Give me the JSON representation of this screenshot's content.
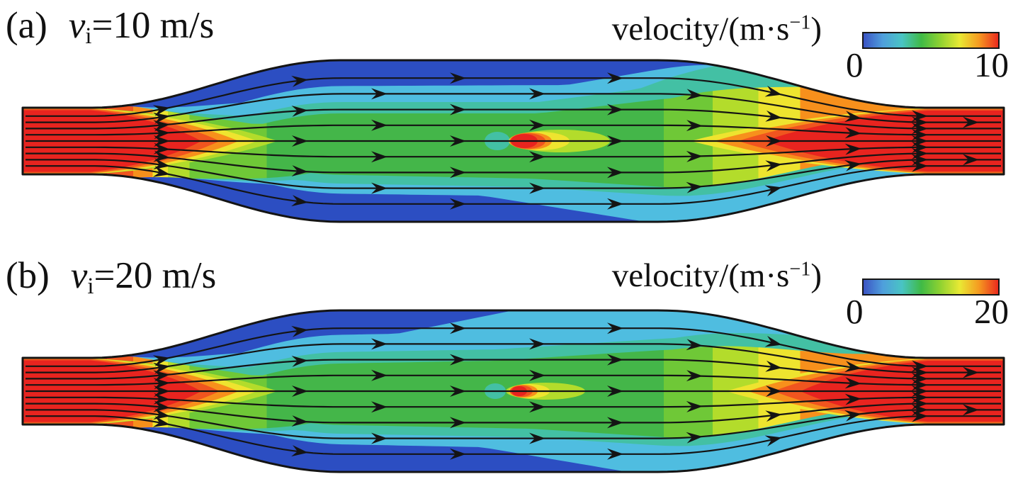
{
  "figure_title": "CFD velocity contours with streamlines in an expanding-contracting flow channel",
  "panels": [
    {
      "tag": "(a)",
      "velocity_var": "v",
      "velocity_sub": "i",
      "velocity_eq": "=10 m/s",
      "colorbar": {
        "title_pre": "velocity/(m·s",
        "title_sup": "−1",
        "title_post": ")",
        "tick_min": "0",
        "tick_max": "10"
      }
    },
    {
      "tag": "(b)",
      "velocity_var": "v",
      "velocity_sub": "i",
      "velocity_eq": "=20 m/s",
      "colorbar": {
        "title_pre": "velocity/(m·s",
        "title_sup": "−1",
        "title_post": ")",
        "tick_min": "0",
        "tick_max": "20"
      }
    }
  ],
  "colors": {
    "ink": "#141414",
    "red": "#e8241f",
    "ored": "#f0551f",
    "orange": "#f7901c",
    "yellow": "#eee42f",
    "ygreen": "#b3dc2b",
    "lgreen": "#6fc837",
    "green": "#44b649",
    "sea": "#43c0a4",
    "cyan": "#4fbde0",
    "dblue": "#2c4ec2",
    "colorbar_gradient": [
      "#3b54c4",
      "#4f9fdc",
      "#49c4c4",
      "#3fba46",
      "#90d231",
      "#e9e934",
      "#f59a21",
      "#ea2b1e"
    ]
  },
  "chart_data": {
    "type": "heatmap",
    "subtype": "CFD velocity contour with streamlines",
    "flow_direction": "left to right",
    "colormap": "rainbow (blue = 0 → green → yellow → red = max)",
    "panels": [
      {
        "label": "(a)",
        "inlet_velocity_m_per_s": 10,
        "colorbar": {
          "title": "velocity/(m·s−1)",
          "min": 0,
          "max": 10
        }
      },
      {
        "label": "(b)",
        "inlet_velocity_m_per_s": 20,
        "colorbar": {
          "title": "velocity/(m·s−1)",
          "min": 0,
          "max": 20
        }
      }
    ],
    "features": [
      "high velocity (red) in narrow inlet and outlet ducts",
      "velocity decreases through diverging section (red→orange→yellow→green bands)",
      "low velocity (dark blue) boundary layers along expanded-section walls",
      "mid velocity (green) across the expanded core",
      "small local high-velocity spot (red/orange/yellow ovals) just right of channel center",
      "red high-velocity jet core forming toward the converging outlet",
      "black streamlines with arrowheads pointing right"
    ]
  }
}
